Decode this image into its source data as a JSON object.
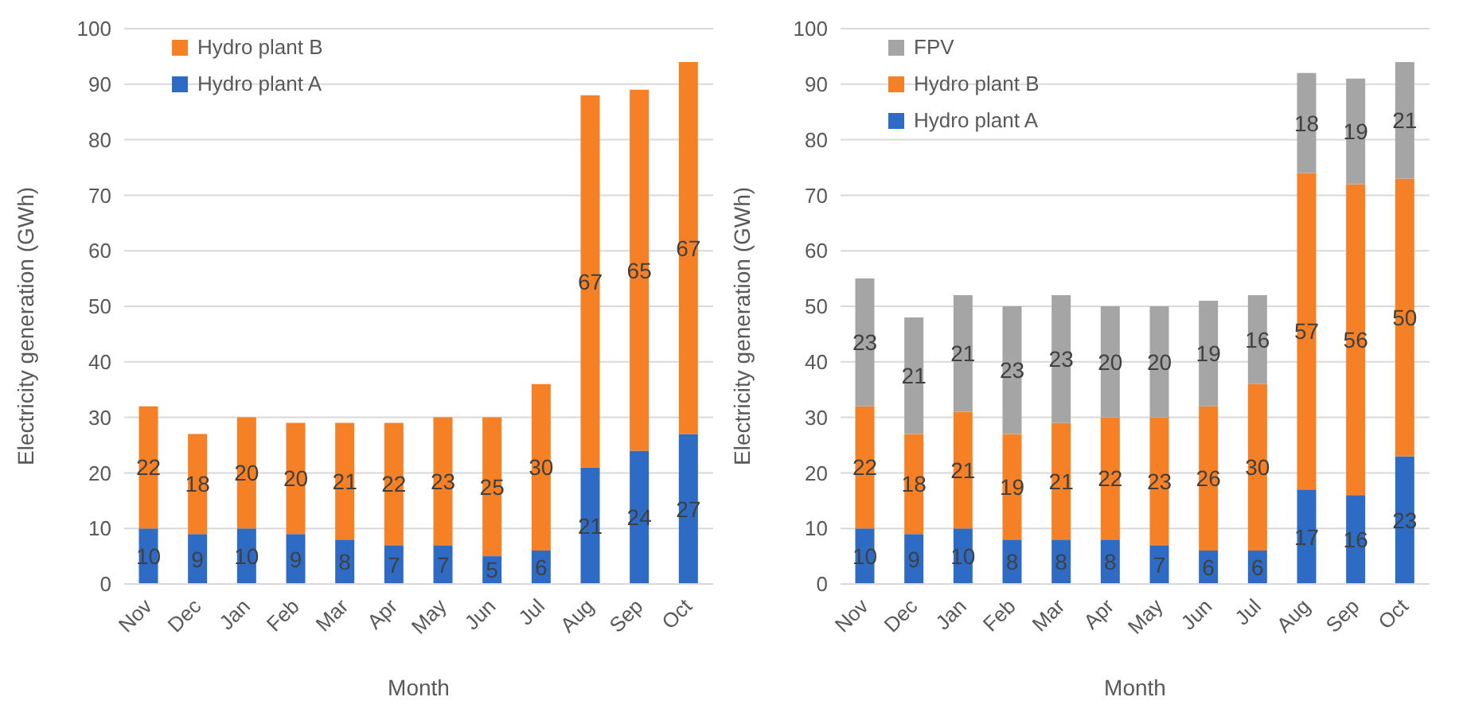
{
  "chart_data": [
    {
      "type": "bar",
      "stacked": true,
      "categories": [
        "Nov",
        "Dec",
        "Jan",
        "Feb",
        "Mar",
        "Apr",
        "May",
        "Jun",
        "Jul",
        "Aug",
        "Sep",
        "Oct"
      ],
      "xlabel": "Month",
      "ylabel": "Electricity generation (GWh)",
      "ylim": [
        0,
        100
      ],
      "yticks": [
        0,
        10,
        20,
        30,
        40,
        50,
        60,
        70,
        80,
        90,
        100
      ],
      "grid": "y",
      "legend": "top left",
      "data_labels": true,
      "series": [
        {
          "name": "Hydro plant A",
          "color": "#2e6bc4",
          "values": [
            10,
            9,
            10,
            9,
            8,
            7,
            7,
            5,
            6,
            21,
            24,
            27
          ]
        },
        {
          "name": "Hydro plant B",
          "color": "#f58025",
          "values": [
            22,
            18,
            20,
            20,
            21,
            22,
            23,
            25,
            30,
            67,
            65,
            67
          ]
        }
      ]
    },
    {
      "type": "bar",
      "stacked": true,
      "categories": [
        "Nov",
        "Dec",
        "Jan",
        "Feb",
        "Mar",
        "Apr",
        "May",
        "Jun",
        "Jul",
        "Aug",
        "Sep",
        "Oct"
      ],
      "xlabel": "Month",
      "ylabel": "Electricity generation (GWh)",
      "ylim": [
        0,
        100
      ],
      "yticks": [
        0,
        10,
        20,
        30,
        40,
        50,
        60,
        70,
        80,
        90,
        100
      ],
      "grid": "y",
      "legend": "top left",
      "data_labels": true,
      "series": [
        {
          "name": "Hydro plant A",
          "color": "#2e6bc4",
          "values": [
            10,
            9,
            10,
            8,
            8,
            8,
            7,
            6,
            6,
            17,
            16,
            23
          ]
        },
        {
          "name": "Hydro plant B",
          "color": "#f58025",
          "values": [
            22,
            18,
            21,
            19,
            21,
            22,
            23,
            26,
            30,
            57,
            56,
            50
          ]
        },
        {
          "name": "FPV",
          "color": "#a5a5a5",
          "values": [
            23,
            21,
            21,
            23,
            23,
            20,
            20,
            19,
            16,
            18,
            19,
            21
          ]
        }
      ]
    }
  ]
}
